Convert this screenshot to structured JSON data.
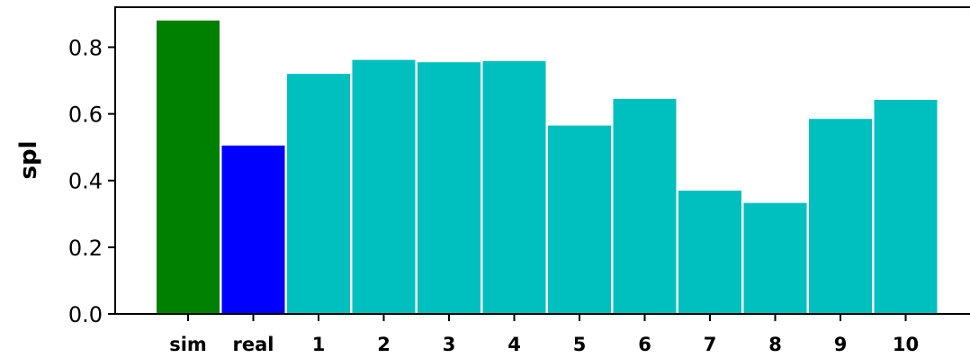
{
  "chart_data": {
    "type": "bar",
    "title": "",
    "xlabel": "",
    "ylabel": "spl",
    "ylim": [
      0,
      0.92
    ],
    "yticks": [
      "0.0",
      "0.2",
      "0.4",
      "0.6",
      "0.8"
    ],
    "ytick_values": [
      0.0,
      0.2,
      0.4,
      0.6,
      0.8
    ],
    "categories": [
      "sim",
      "real",
      "1",
      "2",
      "3",
      "4",
      "5",
      "6",
      "7",
      "8",
      "9",
      "10"
    ],
    "values": [
      0.88,
      0.505,
      0.72,
      0.762,
      0.755,
      0.758,
      0.565,
      0.645,
      0.37,
      0.333,
      0.585,
      0.642
    ],
    "colors": [
      "#008000",
      "#0000ff",
      "#00bfbf",
      "#00bfbf",
      "#00bfbf",
      "#00bfbf",
      "#00bfbf",
      "#00bfbf",
      "#00bfbf",
      "#00bfbf",
      "#00bfbf",
      "#00bfbf"
    ],
    "grid": false,
    "legend": "none"
  }
}
